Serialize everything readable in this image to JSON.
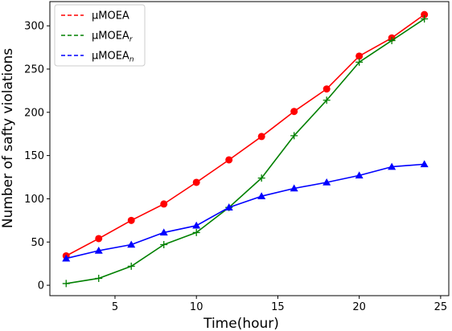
{
  "chart_data": {
    "type": "line",
    "xlabel": "Time(hour)",
    "ylabel": "Number of safty violations",
    "xlim": [
      1,
      25.5
    ],
    "ylim": [
      -12,
      328
    ],
    "xticks": [
      5,
      10,
      15,
      20,
      25
    ],
    "yticks": [
      0,
      50,
      100,
      150,
      200,
      250,
      300
    ],
    "grid": false,
    "legend_position": "top-left",
    "x": [
      2,
      4,
      6,
      8,
      10,
      12,
      14,
      16,
      18,
      20,
      22,
      24
    ],
    "series": [
      {
        "name": "μMOEA",
        "legend_main": "μMOEA",
        "legend_sub": "",
        "color": "#ff0000",
        "marker": "circle",
        "values": [
          34,
          54,
          75,
          94,
          119,
          145,
          172,
          201,
          227,
          265,
          286,
          313
        ]
      },
      {
        "name": "μMOEA_r",
        "legend_main": "μMOEA",
        "legend_sub": "r",
        "color": "#008000",
        "marker": "plus",
        "values": [
          2,
          8,
          22,
          47,
          61,
          90,
          124,
          173,
          214,
          258,
          283,
          308
        ]
      },
      {
        "name": "μMOEA_n",
        "legend_main": "μMOEA",
        "legend_sub": "n",
        "color": "#0000ff",
        "marker": "triangle",
        "values": [
          31,
          40,
          47,
          61,
          69,
          90,
          103,
          112,
          119,
          127,
          137,
          140
        ]
      }
    ]
  }
}
